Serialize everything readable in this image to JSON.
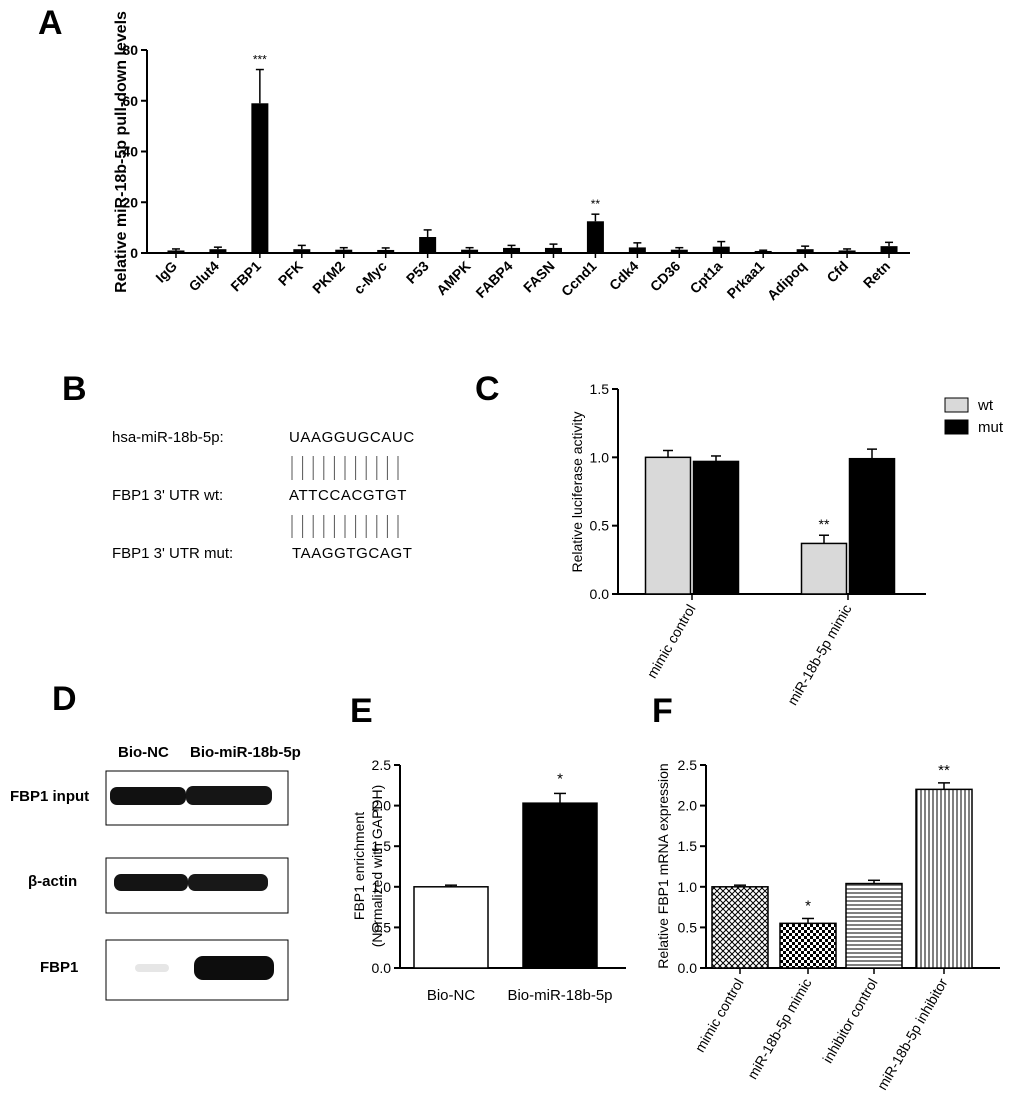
{
  "panel_labels": {
    "a": "A",
    "b": "B",
    "c": "C",
    "d": "D",
    "e": "E",
    "f": "F"
  },
  "colors": {
    "black": "#000000",
    "light_gray": "#d9d9d9",
    "white": "#ffffff"
  },
  "chart_data": [
    {
      "panel": "A",
      "type": "bar",
      "title": "",
      "ylabel": "Relative miR-18b-5p pull-down levels",
      "xlabel": "",
      "ylim": [
        0,
        80
      ],
      "yticks": [
        "0",
        "20",
        "40",
        "60",
        "80"
      ],
      "categories": [
        "IgG",
        "Glut4",
        "FBP1",
        "PFK",
        "PKM2",
        "c-Myc",
        "P53",
        "AMPK",
        "FABP4",
        "FASN",
        "Ccnd1",
        "Cdk4",
        "CD36",
        "Cpt1a",
        "Prkaa1",
        "Adipoq",
        "Cfd",
        "Retn"
      ],
      "values": [
        1,
        1.5,
        59,
        1.5,
        1.3,
        1.2,
        6.3,
        1.3,
        2,
        2,
        12.5,
        2.2,
        1.3,
        2.5,
        0.8,
        1.5,
        1,
        2.7
      ],
      "errors": [
        0.6,
        0.8,
        13.3,
        1.5,
        0.8,
        0.8,
        2.8,
        0.8,
        1,
        1.5,
        2.8,
        1.8,
        0.8,
        2,
        0.3,
        1.2,
        0.6,
        1.5
      ],
      "annotations": [
        {
          "category": "FBP1",
          "text": "***"
        },
        {
          "category": "Ccnd1",
          "text": "**"
        }
      ]
    },
    {
      "panel": "C",
      "type": "bar",
      "title": "",
      "ylabel": "Relative  luciferase activity",
      "xlabel": "",
      "ylim": [
        0,
        1.5
      ],
      "yticks": [
        "0.0",
        "0.5",
        "1.0",
        "1.5"
      ],
      "categories": [
        "mimic control",
        "miR-18b-5p  mimic"
      ],
      "series": [
        {
          "name": "wt",
          "values": [
            1.0,
            0.37
          ],
          "errors": [
            0.05,
            0.06
          ],
          "color": "#d9d9d9"
        },
        {
          "name": "mut",
          "values": [
            0.97,
            0.99
          ],
          "errors": [
            0.04,
            0.07
          ],
          "color": "#000000"
        }
      ],
      "legend_position": "top-right",
      "annotations": [
        {
          "category": "miR-18b-5p  mimic",
          "series": "wt",
          "text": "**"
        }
      ]
    },
    {
      "panel": "E",
      "type": "bar",
      "title": "",
      "ylabel": "FBP1 enrichment",
      "ylabel2": "(Normalized with GAPDH)",
      "xlabel": "",
      "ylim": [
        0,
        2.5
      ],
      "yticks": [
        "0.0",
        "0.5",
        "1.0",
        "1.5",
        "2.0",
        "2.5"
      ],
      "categories": [
        "Bio-NC",
        "Bio-miR-18b-5p"
      ],
      "values": [
        1.0,
        2.03
      ],
      "errors": [
        0.02,
        0.12
      ],
      "fills": [
        "white",
        "black"
      ],
      "annotations": [
        {
          "category": "Bio-miR-18b-5p",
          "text": "*"
        }
      ]
    },
    {
      "panel": "F",
      "type": "bar",
      "title": "",
      "ylabel": "Relative FBP1 mRNA expression",
      "xlabel": "",
      "ylim": [
        0,
        2.5
      ],
      "yticks": [
        "0.0",
        "0.5",
        "1.0",
        "1.5",
        "2.0",
        "2.5"
      ],
      "categories": [
        "mimic control",
        "miR-18b-5p  mimic",
        "inhibitor control",
        "miR-18b-5p inhibitor"
      ],
      "values": [
        1.0,
        0.55,
        1.04,
        2.2
      ],
      "errors": [
        0.02,
        0.06,
        0.04,
        0.08
      ],
      "patterns": [
        "crosshatch",
        "checker",
        "horizontal",
        "vertical"
      ],
      "annotations": [
        {
          "category": "miR-18b-5p  mimic",
          "text": "*"
        },
        {
          "category": "miR-18b-5p inhibitor",
          "text": "**"
        }
      ]
    }
  ],
  "panel_b": {
    "rows": [
      {
        "label": "hsa-miR-18b-5p:",
        "seq": "UAAGGUGCAUC"
      },
      {
        "label": "FBP1 3' UTR wt:",
        "seq": "ATTCCACGTGT"
      },
      {
        "label": "FBP1 3' UTR  mut:",
        "seq": "TAAGGTGCAGT"
      }
    ]
  },
  "panel_d": {
    "lanes": [
      "Bio-NC",
      "Bio-miR-18b-5p"
    ],
    "blots": [
      "FBP1 input",
      "β-actin",
      "FBP1"
    ]
  }
}
